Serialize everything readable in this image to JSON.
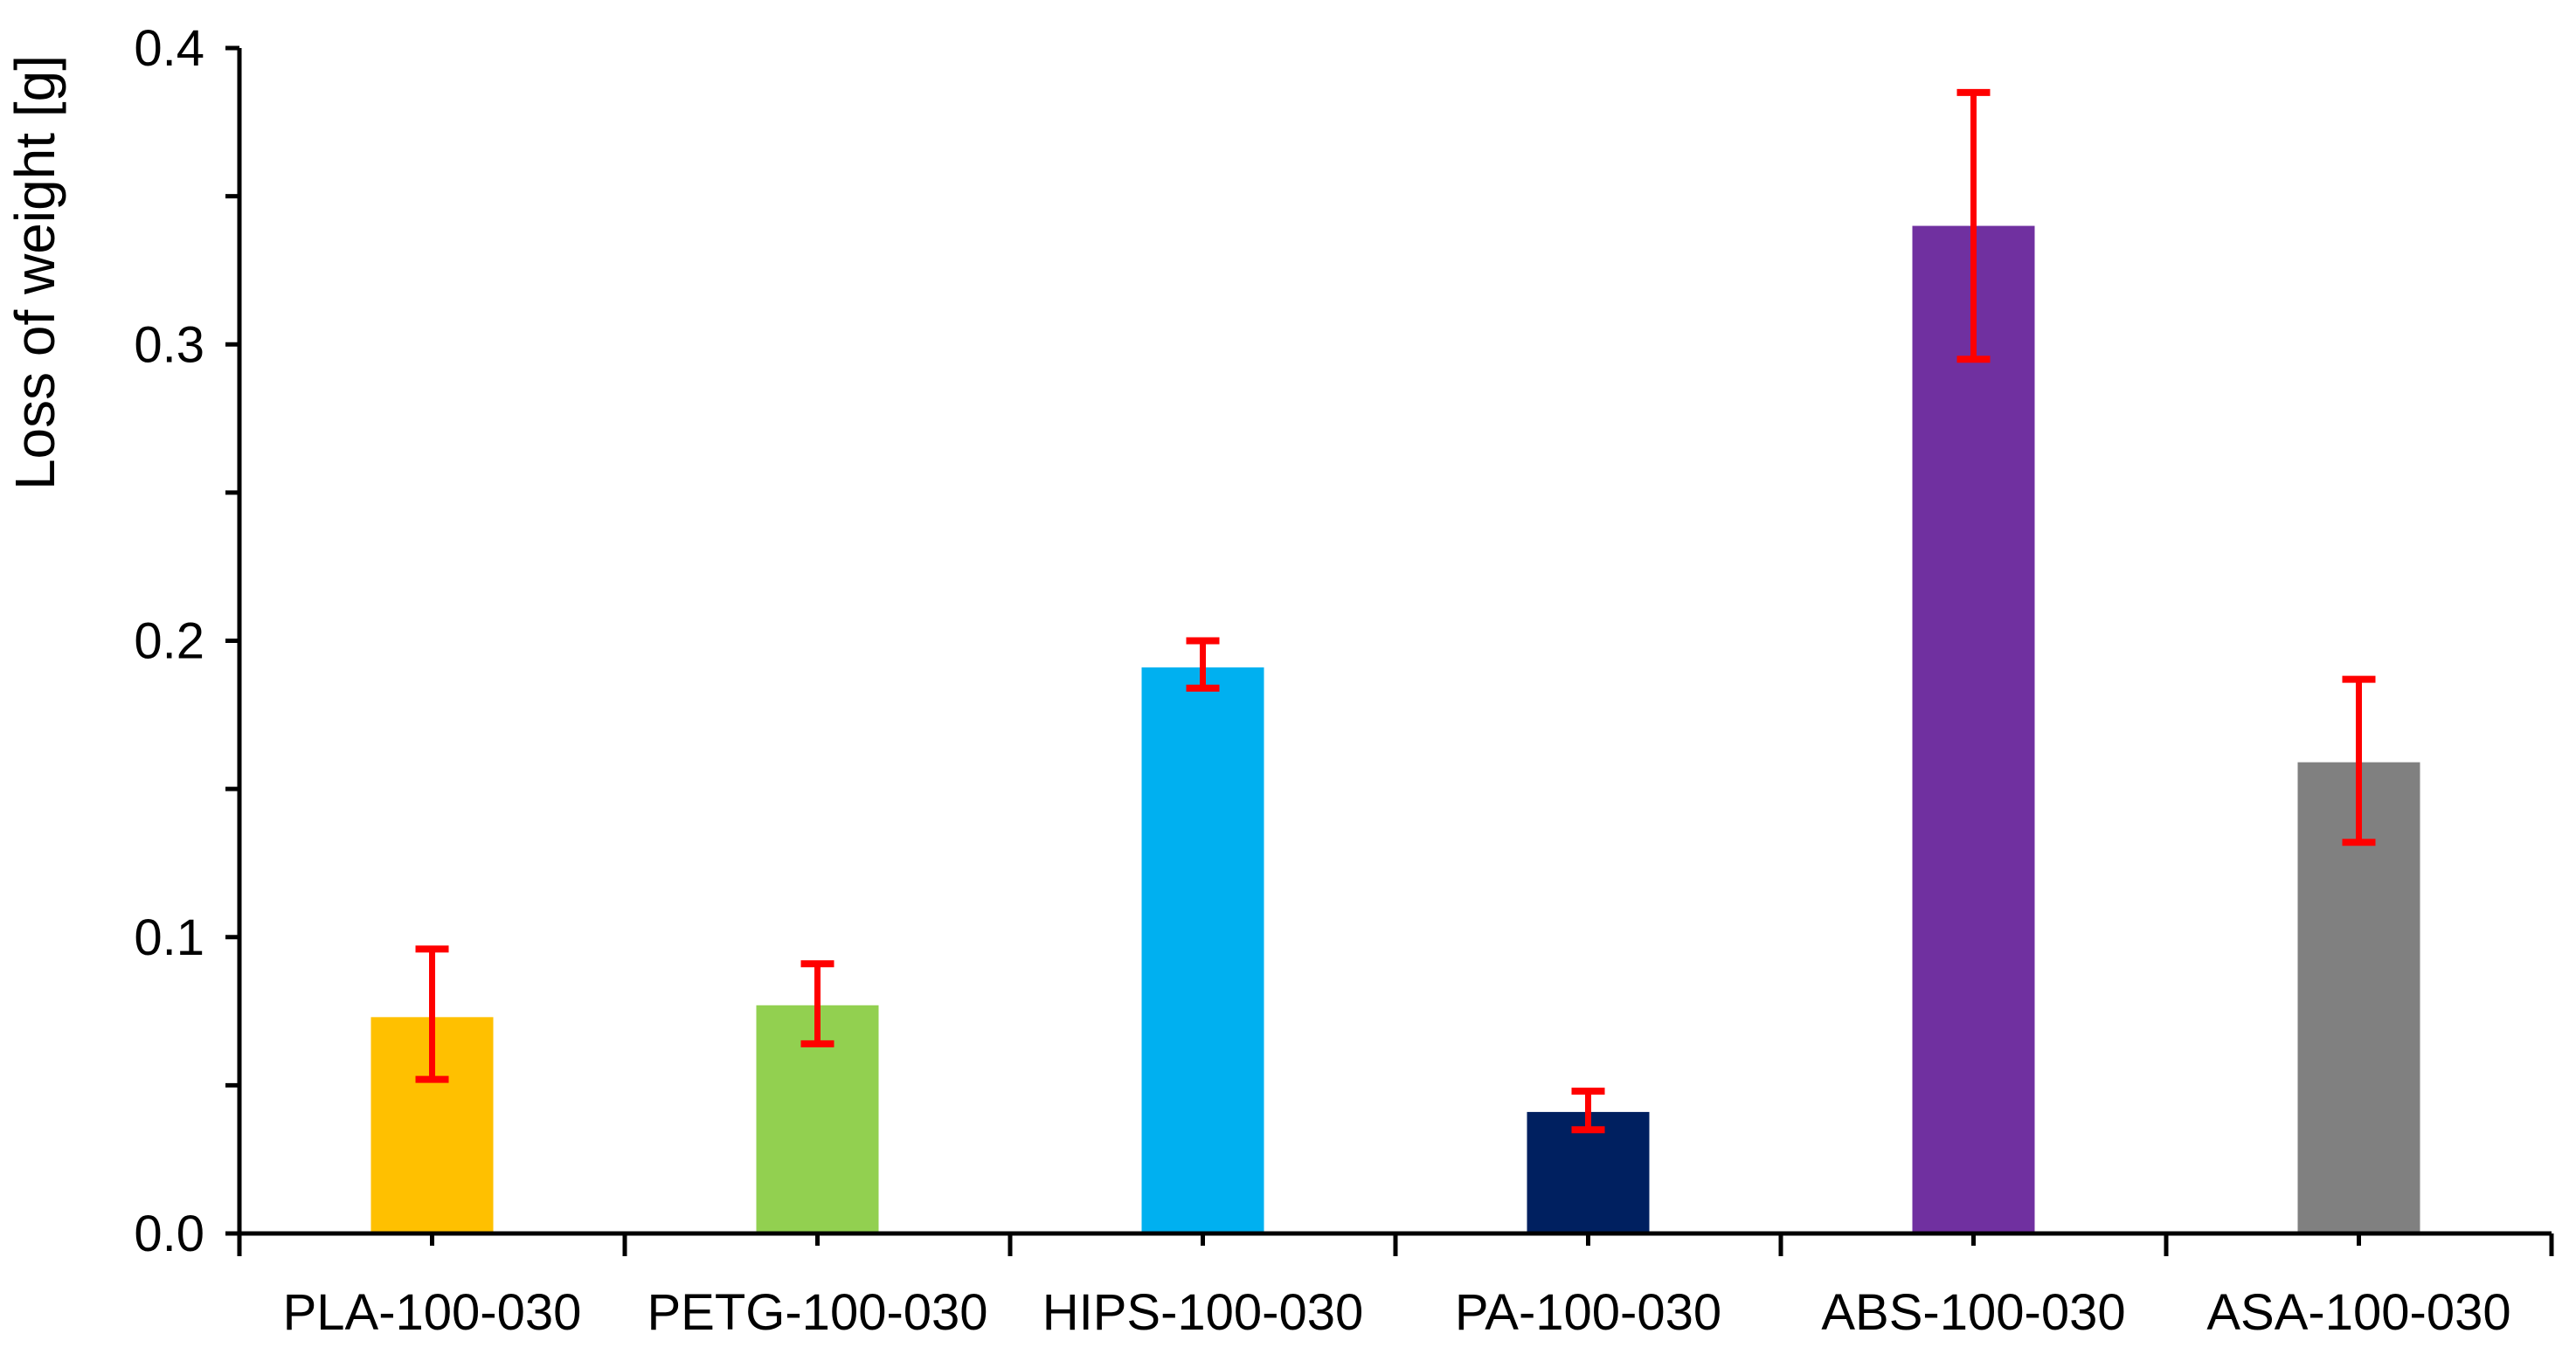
{
  "chart_data": {
    "type": "bar",
    "title": "",
    "xlabel": "",
    "ylabel": "Loss of weight [g]",
    "ylim": [
      0,
      0.4
    ],
    "yticks": [
      "0.0",
      "0.1",
      "0.2",
      "0.3",
      "0.4"
    ],
    "ytick_values": [
      0,
      0.1,
      0.2,
      0.3,
      0.4
    ],
    "grid": false,
    "legend": "none",
    "categories": [
      "PLA-100-030",
      "PETG-100-030",
      "HIPS-100-030",
      "PA-100-030",
      "ABS-100-030",
      "ASA-100-030"
    ],
    "values": [
      0.073,
      0.077,
      0.191,
      0.041,
      0.34,
      0.159
    ],
    "error_low": [
      0.052,
      0.064,
      0.184,
      0.035,
      0.295,
      0.132
    ],
    "error_high": [
      0.096,
      0.091,
      0.2,
      0.048,
      0.385,
      0.187
    ],
    "bar_colors": [
      "#FFC000",
      "#92D050",
      "#00B0F0",
      "#002060",
      "#7030A0",
      "#808080"
    ],
    "error_bar_color": "#FF0000",
    "axis_color": "#000000"
  }
}
